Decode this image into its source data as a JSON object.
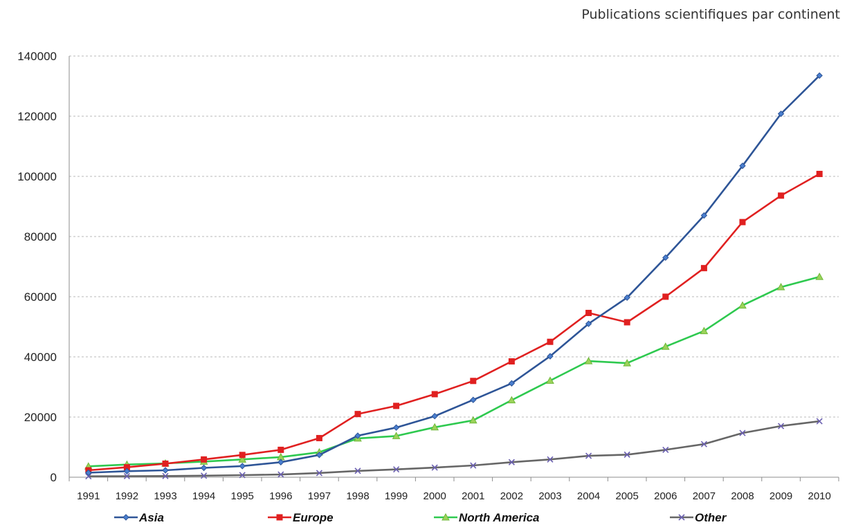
{
  "chart_data": {
    "type": "line",
    "title": "Publications scientifiques par continent",
    "xlabel": "",
    "ylabel": "",
    "x": [
      "1991",
      "1992",
      "1993",
      "1994",
      "1995",
      "1996",
      "1997",
      "1998",
      "1999",
      "2000",
      "2001",
      "2002",
      "2003",
      "2004",
      "2005",
      "2006",
      "2007",
      "2008",
      "2009",
      "2010"
    ],
    "ylim": [
      0,
      140000
    ],
    "yticks": [
      "0",
      "20000",
      "40000",
      "60000",
      "80000",
      "100000",
      "120000",
      "140000"
    ],
    "grid": true,
    "legend_position": "bottom",
    "series": [
      {
        "name": "Asia",
        "color": "#2E5597",
        "marker": "diamond",
        "values": [
          1500,
          2000,
          2300,
          3100,
          3700,
          5000,
          7400,
          13800,
          16500,
          20300,
          25700,
          31200,
          40200,
          51000,
          59700,
          73000,
          87000,
          103500,
          120800,
          133500
        ]
      },
      {
        "name": "Europe",
        "color": "#E02020",
        "marker": "square",
        "values": [
          2300,
          3300,
          4500,
          5900,
          7400,
          9100,
          13000,
          21000,
          23700,
          27600,
          32000,
          38500,
          45000,
          54600,
          51500,
          60000,
          69500,
          84800,
          93600,
          100800
        ]
      },
      {
        "name": "North America",
        "color": "#2EC94F",
        "marker": "triangle",
        "values": [
          3600,
          4200,
          4600,
          5200,
          5900,
          6700,
          8300,
          12900,
          13700,
          16600,
          18900,
          25600,
          32100,
          38600,
          37900,
          43400,
          48600,
          57100,
          63200,
          66600
        ]
      },
      {
        "name": "Other",
        "color": "#666666",
        "marker": "x",
        "values": [
          300,
          350,
          400,
          500,
          700,
          900,
          1400,
          2100,
          2600,
          3200,
          3900,
          5000,
          5900,
          7100,
          7500,
          9100,
          11000,
          14700,
          17000,
          18600
        ]
      }
    ]
  }
}
